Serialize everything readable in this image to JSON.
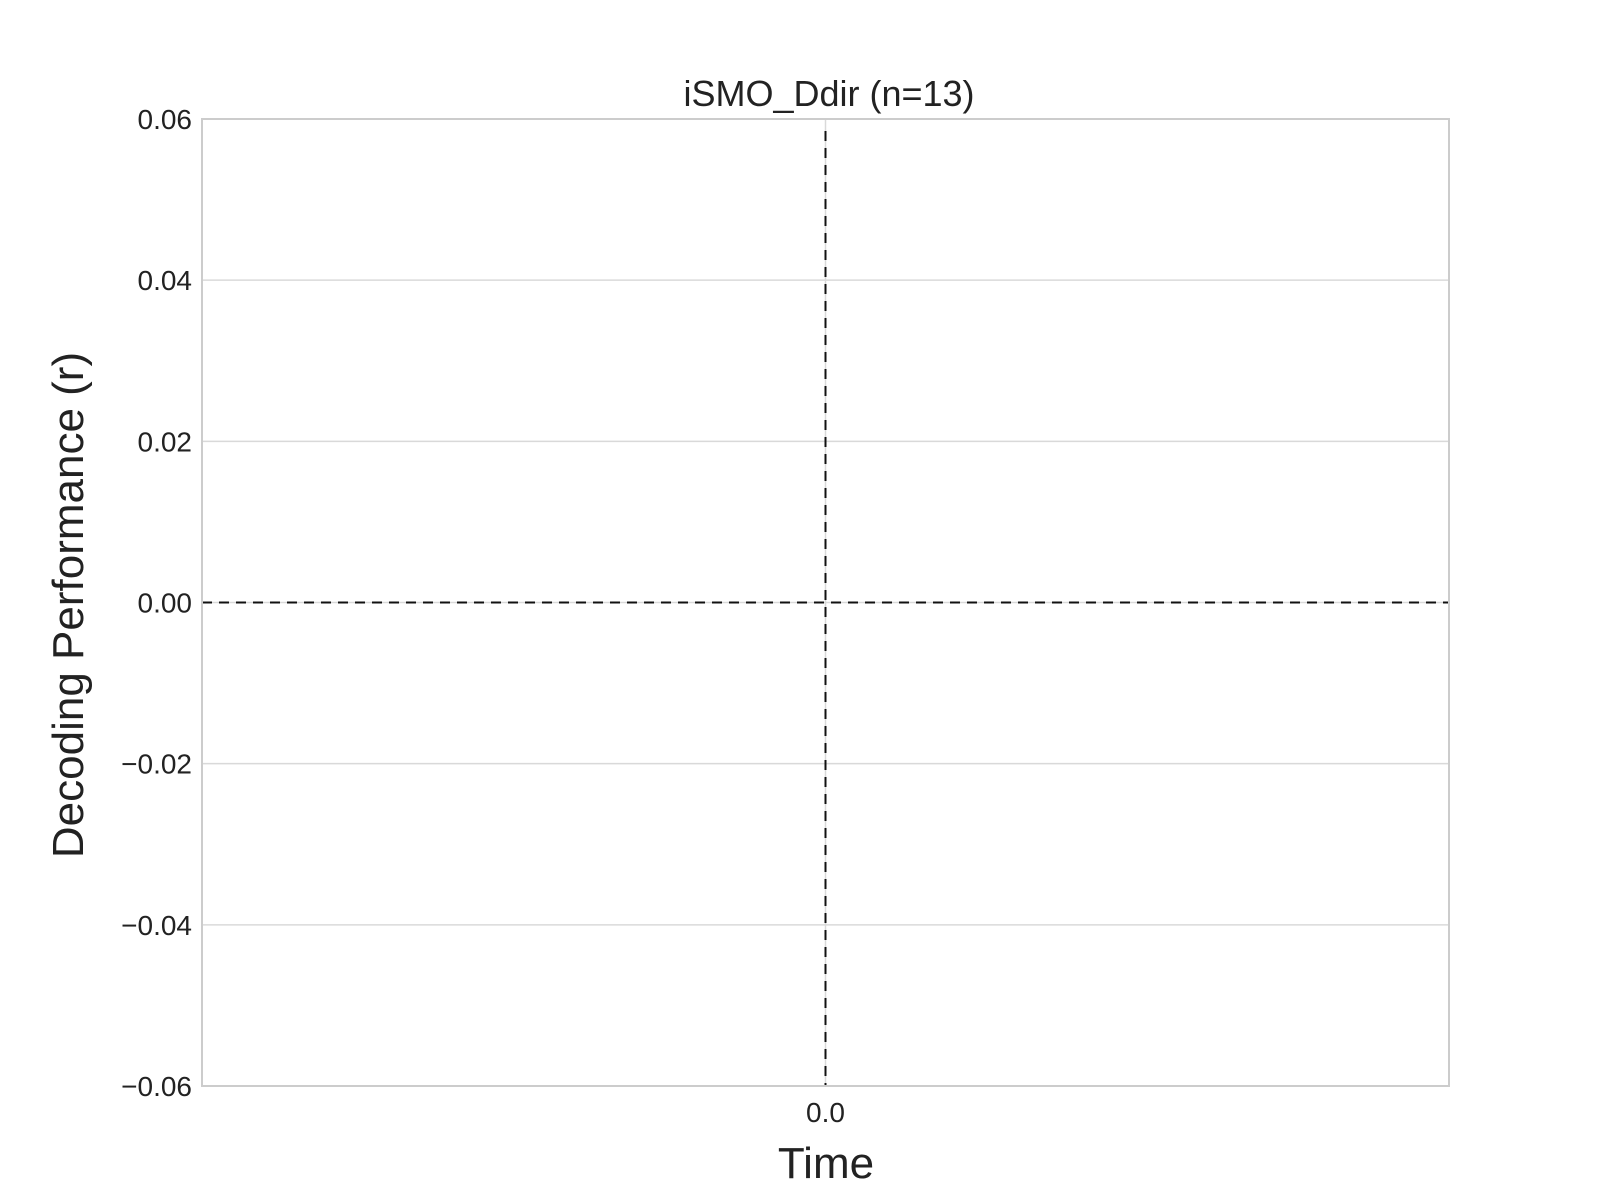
{
  "chart_data": {
    "type": "line",
    "title": "iSMO_Ddir (n=13)",
    "xlabel": "Time",
    "ylabel": "Decoding Performance (r)",
    "ylim": [
      -0.06,
      0.06
    ],
    "xlim": [
      -1,
      1
    ],
    "y_ticks": [
      "−0.06",
      "−0.04",
      "−0.02",
      "0.00",
      "0.02",
      "0.04",
      "0.06"
    ],
    "y_tick_values": [
      -0.06,
      -0.04,
      -0.02,
      0.0,
      0.02,
      0.04,
      0.06
    ],
    "x_ticks": [
      "0.0"
    ],
    "x_tick_values": [
      0.0
    ],
    "grid": true,
    "series": [],
    "reference_lines": [
      {
        "orientation": "horizontal",
        "value": 0.0,
        "style": "dashed"
      },
      {
        "orientation": "vertical",
        "value": 0.0,
        "style": "dashed"
      }
    ],
    "colors": {
      "grid": "#d9d9d9",
      "frame": "#cccccc",
      "reference": "#111111"
    }
  }
}
